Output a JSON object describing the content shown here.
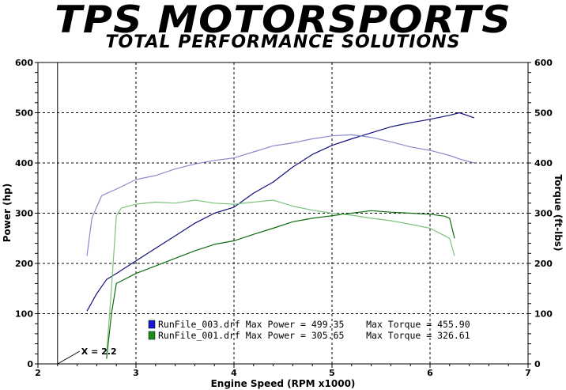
{
  "banner": {
    "brand": "TPS MOTORSPORTS",
    "tagline": "TOTAL PERFORMANCE SOLUTIONS"
  },
  "chart_data": {
    "type": "line",
    "xlabel": "Engine Speed (RPM x1000)",
    "ylabel_left": "Power (hp)",
    "ylabel_right": "Torque (ft-lbs)",
    "xlim": [
      2,
      7
    ],
    "ylim": [
      0,
      600
    ],
    "x_ticks": [
      "2",
      "3",
      "4",
      "5",
      "6",
      "7"
    ],
    "y_ticks": [
      "0",
      "100",
      "200",
      "300",
      "400",
      "500",
      "600"
    ],
    "grid": true,
    "cursor": {
      "x": 2.2,
      "label": "X = 2.2"
    },
    "colors": {
      "run003_power": "#10107a",
      "run003_torque": "#8a8acc",
      "run001_power": "#0f6b0f",
      "run001_torque": "#7cc27c"
    },
    "legend": [
      {
        "swatch": "#1a1ad0",
        "text": "RunFile_003.drf Max Power = 499.35    Max Torque = 455.90"
      },
      {
        "swatch": "#1a8a1a",
        "text": "RunFile_001.drf Max Power = 305.65    Max Torque = 326.61"
      }
    ],
    "series": [
      {
        "name": "RunFile_003.drf Power",
        "color": "#10107a",
        "x": [
          2.5,
          2.6,
          2.7,
          2.8,
          3.0,
          3.2,
          3.4,
          3.6,
          3.8,
          4.0,
          4.2,
          4.4,
          4.6,
          4.8,
          5.0,
          5.2,
          5.4,
          5.6,
          5.8,
          6.0,
          6.2,
          6.3,
          6.45
        ],
        "y": [
          105,
          140,
          168,
          180,
          205,
          230,
          255,
          280,
          300,
          312,
          340,
          362,
          392,
          417,
          435,
          448,
          460,
          472,
          480,
          487,
          495,
          500,
          490
        ]
      },
      {
        "name": "RunFile_003.drf Torque",
        "color": "#8a8acc",
        "x": [
          2.5,
          2.55,
          2.65,
          2.8,
          3.0,
          3.2,
          3.4,
          3.6,
          3.8,
          4.0,
          4.2,
          4.4,
          4.6,
          4.8,
          5.0,
          5.2,
          5.4,
          5.6,
          5.8,
          6.0,
          6.2,
          6.3,
          6.45
        ],
        "y": [
          215,
          290,
          335,
          348,
          367,
          375,
          388,
          398,
          405,
          410,
          422,
          434,
          440,
          448,
          454,
          456,
          451,
          442,
          432,
          425,
          415,
          408,
          400
        ]
      },
      {
        "name": "RunFile_001.drf Power",
        "color": "#0f6b0f",
        "x": [
          2.7,
          2.75,
          2.8,
          3.0,
          3.2,
          3.4,
          3.6,
          3.8,
          4.0,
          4.2,
          4.4,
          4.6,
          4.8,
          5.0,
          5.2,
          5.4,
          5.6,
          5.8,
          6.0,
          6.15,
          6.2,
          6.25
        ],
        "y": [
          10,
          100,
          160,
          180,
          195,
          210,
          225,
          238,
          245,
          258,
          270,
          283,
          290,
          295,
          300,
          305,
          302,
          300,
          298,
          294,
          290,
          250
        ]
      },
      {
        "name": "RunFile_001.drf Torque",
        "color": "#7cc27c",
        "x": [
          2.7,
          2.75,
          2.8,
          2.85,
          3.0,
          3.2,
          3.4,
          3.6,
          3.8,
          4.0,
          4.2,
          4.4,
          4.6,
          4.8,
          5.0,
          5.2,
          5.4,
          5.6,
          5.8,
          6.0,
          6.2,
          6.25
        ],
        "y": [
          20,
          150,
          295,
          310,
          318,
          322,
          320,
          326,
          320,
          318,
          322,
          326,
          314,
          306,
          300,
          296,
          290,
          285,
          278,
          270,
          250,
          215
        ]
      }
    ]
  }
}
